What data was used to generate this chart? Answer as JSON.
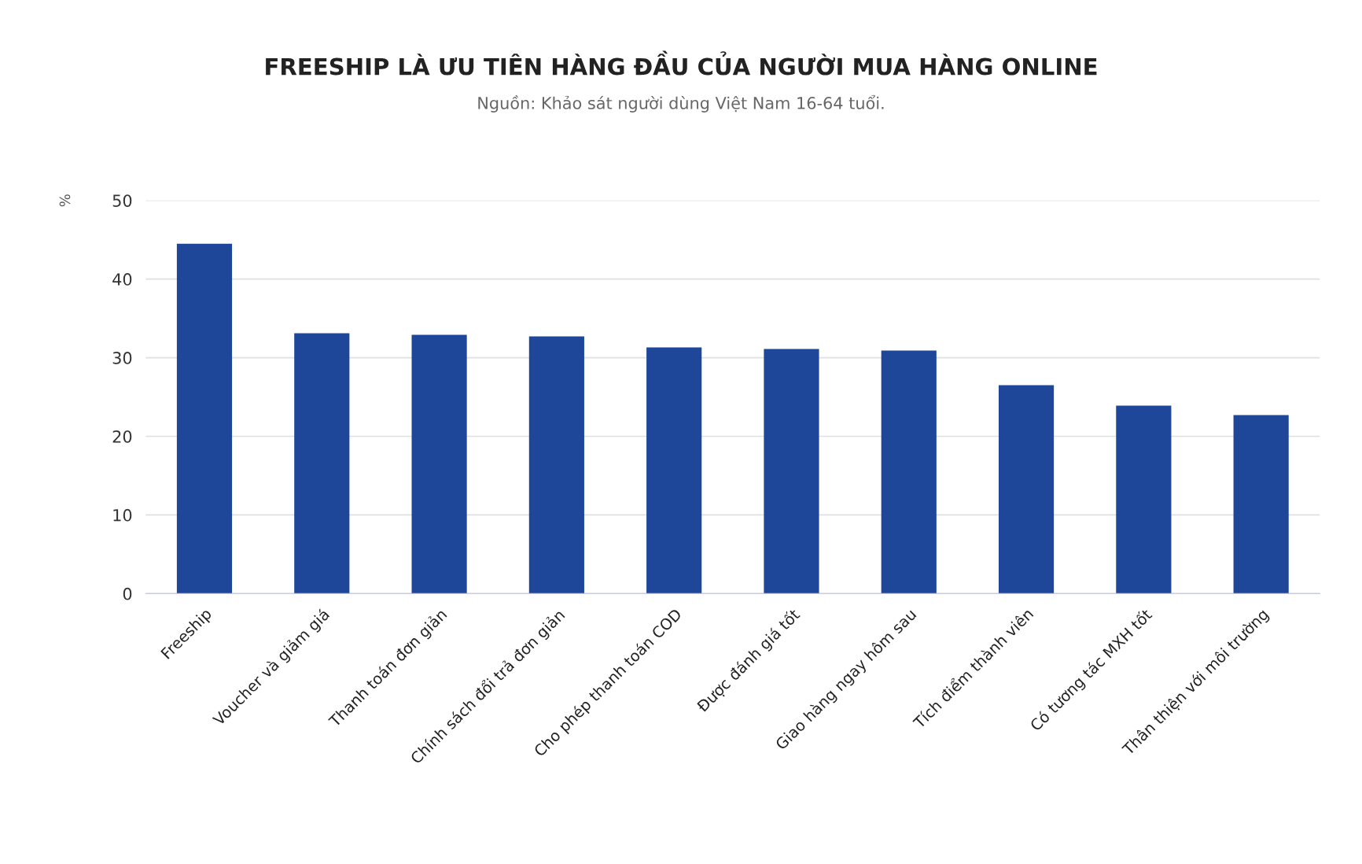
{
  "chart_data": {
    "type": "bar",
    "title": "FREESHIP LÀ ƯU TIÊN HÀNG ĐẦU CỦA NGƯỜI MUA HÀNG ONLINE",
    "subtitle": "Nguồn: Khảo sát người dùng Việt Nam 16-64 tuổi.",
    "ylabel": "%",
    "categories": [
      "Freeship",
      "Voucher và giảm giá",
      "Thanh toán đơn giản",
      "Chính sách đổi trả đơn giản",
      "Cho phép thanh toán COD",
      "Được đánh giá tốt",
      "Giao hàng ngay hôm sau",
      "Tích điểm thành viên",
      "Có tương tác MXH tốt",
      "Thân thiện với môi trường"
    ],
    "values": [
      44.5,
      33.1,
      32.9,
      32.7,
      31.3,
      31.1,
      30.9,
      26.5,
      23.9,
      22.7
    ],
    "color": "#1f4799",
    "ylim": [
      0,
      50
    ],
    "yticks": [
      0,
      10,
      20,
      30,
      40,
      50
    ],
    "grid": "y"
  }
}
